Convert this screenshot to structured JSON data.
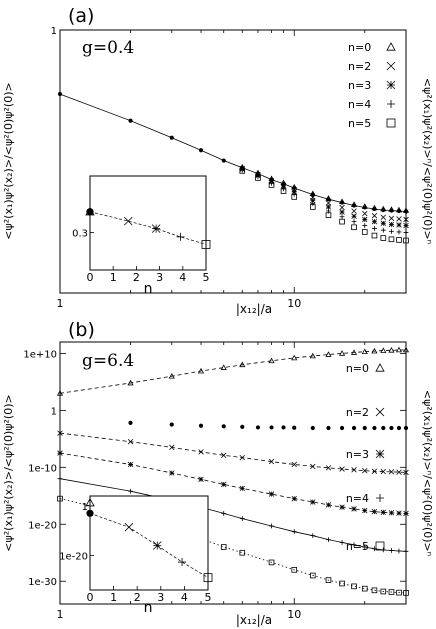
{
  "chart_data": [
    {
      "panel_label": "(a)",
      "type": "scatter",
      "annotation": "g=0.4",
      "xlabel": "|x₁₂|/a",
      "ylabel_left": "<ψ²(x₁)ψ²(x₂)>/<ψ²(0)ψ²(0)>",
      "ylabel_right": "<ψ²(x₁)ψ²(x₂)>ⁿ/<ψ²(0)ψ²(0)>ⁿ",
      "x_scale": "log",
      "y_scale": "log",
      "xlim": [
        1,
        30
      ],
      "ylim": [
        0.15,
        1
      ],
      "x_ticks": [
        {
          "value": 1,
          "label": "1"
        },
        {
          "value": 10,
          "label": "10"
        }
      ],
      "y_ticks": [
        {
          "value": 1,
          "label": "1"
        }
      ],
      "legend_position": "top-right",
      "legend": [
        {
          "label": "n=0",
          "marker": "triangle"
        },
        {
          "label": "n=2",
          "marker": "x"
        },
        {
          "label": "n=3",
          "marker": "asterisk"
        },
        {
          "label": "n=4",
          "marker": "plus"
        },
        {
          "label": "n=5",
          "marker": "square"
        }
      ],
      "series": [
        {
          "marker": "filled-circle",
          "line": "solid",
          "x": [
            1,
            2,
            3,
            4,
            5,
            6,
            7,
            8,
            9,
            10,
            12,
            14,
            16,
            18,
            20,
            22,
            24,
            26,
            28,
            30
          ],
          "y": [
            0.63,
            0.52,
            0.46,
            0.42,
            0.39,
            0.37,
            0.355,
            0.34,
            0.33,
            0.32,
            0.305,
            0.295,
            0.288,
            0.282,
            0.278,
            0.275,
            0.273,
            0.272,
            0.271,
            0.27
          ]
        },
        {
          "marker": "triangle",
          "line": "none",
          "x": [
            6,
            7,
            8,
            9,
            10,
            12,
            14,
            16,
            18,
            20,
            22,
            24,
            26,
            28,
            30
          ],
          "y": [
            0.372,
            0.357,
            0.342,
            0.332,
            0.322,
            0.307,
            0.297,
            0.29,
            0.284,
            0.28,
            0.277,
            0.275,
            0.274,
            0.273,
            0.272
          ]
        },
        {
          "marker": "x",
          "line": "none",
          "x": [
            6,
            7,
            8,
            9,
            10,
            12,
            14,
            16,
            18,
            20,
            22,
            24,
            26,
            28,
            30
          ],
          "y": [
            0.368,
            0.352,
            0.337,
            0.326,
            0.316,
            0.299,
            0.287,
            0.278,
            0.271,
            0.266,
            0.262,
            0.259,
            0.257,
            0.256,
            0.255
          ]
        },
        {
          "marker": "asterisk",
          "line": "none",
          "x": [
            6,
            7,
            8,
            9,
            10,
            12,
            14,
            16,
            18,
            20,
            22,
            24,
            26,
            28,
            30
          ],
          "y": [
            0.366,
            0.35,
            0.334,
            0.322,
            0.311,
            0.292,
            0.279,
            0.269,
            0.261,
            0.255,
            0.251,
            0.248,
            0.246,
            0.245,
            0.244
          ]
        },
        {
          "marker": "plus",
          "line": "none",
          "x": [
            6,
            7,
            8,
            9,
            10,
            12,
            14,
            16,
            18,
            20,
            22,
            24,
            26,
            28,
            30
          ],
          "y": [
            0.364,
            0.347,
            0.331,
            0.318,
            0.306,
            0.286,
            0.271,
            0.26,
            0.251,
            0.244,
            0.239,
            0.236,
            0.234,
            0.233,
            0.232
          ]
        },
        {
          "marker": "square",
          "line": "none",
          "x": [
            6,
            7,
            8,
            9,
            10,
            12,
            14,
            16,
            18,
            20,
            22,
            24,
            26,
            28,
            30
          ],
          "y": [
            0.362,
            0.344,
            0.327,
            0.313,
            0.3,
            0.279,
            0.263,
            0.251,
            0.241,
            0.233,
            0.227,
            0.223,
            0.221,
            0.22,
            0.219
          ]
        }
      ],
      "inset": {
        "xlabel": "n",
        "x_ticks": [
          0,
          1,
          2,
          3,
          4,
          5
        ],
        "y_ticks": [
          {
            "value": 0.3,
            "label": "0.3"
          }
        ],
        "xlim": [
          0,
          5
        ],
        "ylim": [
          0.2,
          0.45
        ],
        "points": [
          {
            "n": 0,
            "y": 0.355,
            "marker": "filled-circle"
          },
          {
            "n": 0,
            "y": 0.355,
            "marker": "triangle"
          },
          {
            "n": 1.65,
            "y": 0.33,
            "marker": "x"
          },
          {
            "n": 2.85,
            "y": 0.31,
            "marker": "asterisk"
          },
          {
            "n": 3.9,
            "y": 0.288,
            "marker": "plus"
          },
          {
            "n": 5,
            "y": 0.268,
            "marker": "square"
          }
        ]
      }
    },
    {
      "panel_label": "(b)",
      "type": "scatter",
      "annotation": "g=6.4",
      "xlabel": "|x₁₂|/a",
      "ylabel_left": "<ψ²(x₁)ψ²(x₂)>/<ψ²(0)ψ²(0)>",
      "ylabel_right": "<ψ²(x₁)ψ²(x₂)>ⁿ/<ψ²(0)ψ²(0)>ⁿ",
      "x_scale": "log",
      "y_scale": "log",
      "xlim": [
        1,
        30
      ],
      "ylim_log10": [
        -34,
        12
      ],
      "x_ticks": [
        {
          "value": 1,
          "label": "1"
        },
        {
          "value": 10,
          "label": "10"
        }
      ],
      "y_ticks": [
        {
          "log10": 10,
          "label": "1e+10"
        },
        {
          "log10": 0,
          "label": "1"
        },
        {
          "log10": -10,
          "label": "1e-10"
        },
        {
          "log10": -20,
          "label": "1e-20"
        },
        {
          "log10": -30,
          "label": "1e-30"
        }
      ],
      "curve_labels": [
        {
          "label": "n=0",
          "marker": "triangle"
        },
        {
          "label": "n=2",
          "marker": "x"
        },
        {
          "label": "n=3",
          "marker": "asterisk"
        },
        {
          "label": "n=4",
          "marker": "plus"
        },
        {
          "label": "n=5",
          "marker": "square"
        }
      ],
      "series": [
        {
          "marker": "filled-circle",
          "line": "none",
          "x": [
            2,
            3,
            4,
            5,
            6,
            7,
            8,
            9,
            10,
            12,
            14,
            16,
            18,
            20,
            22,
            24,
            26,
            28,
            30
          ],
          "log10_y": [
            -2.2,
            -2.5,
            -2.7,
            -2.8,
            -2.9,
            -3.0,
            -3.0,
            -3.0,
            -3.05,
            -3.1,
            -3.1,
            -3.1,
            -3.1,
            -3.1,
            -3.1,
            -3.1,
            -3.1,
            -3.1,
            -3.1
          ]
        },
        {
          "marker": "triangle",
          "line": "dashed",
          "x": [
            1,
            2,
            3,
            4,
            5,
            6,
            8,
            10,
            12,
            14,
            16,
            18,
            20,
            22,
            24,
            26,
            28,
            30
          ],
          "log10_y": [
            3.0,
            4.8,
            6.0,
            6.9,
            7.5,
            8.0,
            8.7,
            9.2,
            9.55,
            9.8,
            10.0,
            10.15,
            10.3,
            10.4,
            10.5,
            10.55,
            10.6,
            10.6
          ]
        },
        {
          "marker": "x",
          "line": "dashed",
          "x": [
            1,
            2,
            3,
            4,
            5,
            6,
            8,
            10,
            12,
            14,
            16,
            18,
            20,
            22,
            24,
            26,
            28,
            30
          ],
          "log10_y": [
            -4.0,
            -5.5,
            -6.5,
            -7.3,
            -7.9,
            -8.3,
            -9.0,
            -9.5,
            -9.85,
            -10.1,
            -10.3,
            -10.45,
            -10.6,
            -10.7,
            -10.75,
            -10.8,
            -10.85,
            -10.9
          ]
        },
        {
          "marker": "asterisk",
          "line": "dashed",
          "x": [
            1,
            2,
            3,
            4,
            5,
            6,
            8,
            10,
            12,
            14,
            16,
            18,
            20,
            22,
            24,
            26,
            28,
            30
          ],
          "log10_y": [
            -7.5,
            -9.5,
            -11.0,
            -12.1,
            -13.0,
            -13.7,
            -14.7,
            -15.5,
            -16.1,
            -16.6,
            -17.0,
            -17.3,
            -17.6,
            -17.8,
            -17.9,
            -18.0,
            -18.05,
            -18.1
          ]
        },
        {
          "marker": "plus",
          "line": "solid",
          "x": [
            1,
            2,
            3,
            4,
            5,
            6,
            8,
            10,
            12,
            14,
            16,
            18,
            20,
            22,
            24,
            26,
            28,
            30
          ],
          "log10_y": [
            -12.0,
            -14.2,
            -15.8,
            -17.0,
            -18.1,
            -19.0,
            -20.3,
            -21.3,
            -22.0,
            -22.7,
            -23.2,
            -23.6,
            -24.0,
            -24.3,
            -24.5,
            -24.6,
            -24.7,
            -24.75
          ]
        },
        {
          "marker": "square",
          "line": "dotted",
          "x": [
            1,
            2,
            3,
            4,
            5,
            6,
            8,
            10,
            12,
            14,
            16,
            18,
            20,
            22,
            24,
            26,
            28,
            30
          ],
          "log10_y": [
            -15.5,
            -18.5,
            -20.8,
            -22.5,
            -24.0,
            -25.0,
            -26.7,
            -28.0,
            -29.0,
            -29.8,
            -30.4,
            -30.9,
            -31.3,
            -31.6,
            -31.8,
            -31.9,
            -32.0,
            -32.05
          ]
        }
      ],
      "inset": {
        "xlabel": "n",
        "x_ticks": [
          0,
          1,
          2,
          3,
          4,
          5
        ],
        "y_ticks": [
          {
            "log10": 0,
            "label": "1"
          },
          {
            "log10": -20,
            "label": "1e-20"
          }
        ],
        "xlim": [
          0,
          5
        ],
        "ylim_log10": [
          -34,
          4
        ],
        "points": [
          {
            "n": 0,
            "log10_y": 1.3,
            "marker": "triangle"
          },
          {
            "n": 0,
            "log10_y": -3.0,
            "marker": "filled-circle"
          },
          {
            "n": 1.65,
            "log10_y": -8.6,
            "marker": "x"
          },
          {
            "n": 2.85,
            "log10_y": -16.0,
            "marker": "asterisk"
          },
          {
            "n": 3.9,
            "log10_y": -22.7,
            "marker": "plus"
          },
          {
            "n": 5,
            "log10_y": -29.0,
            "marker": "square"
          }
        ]
      }
    }
  ]
}
